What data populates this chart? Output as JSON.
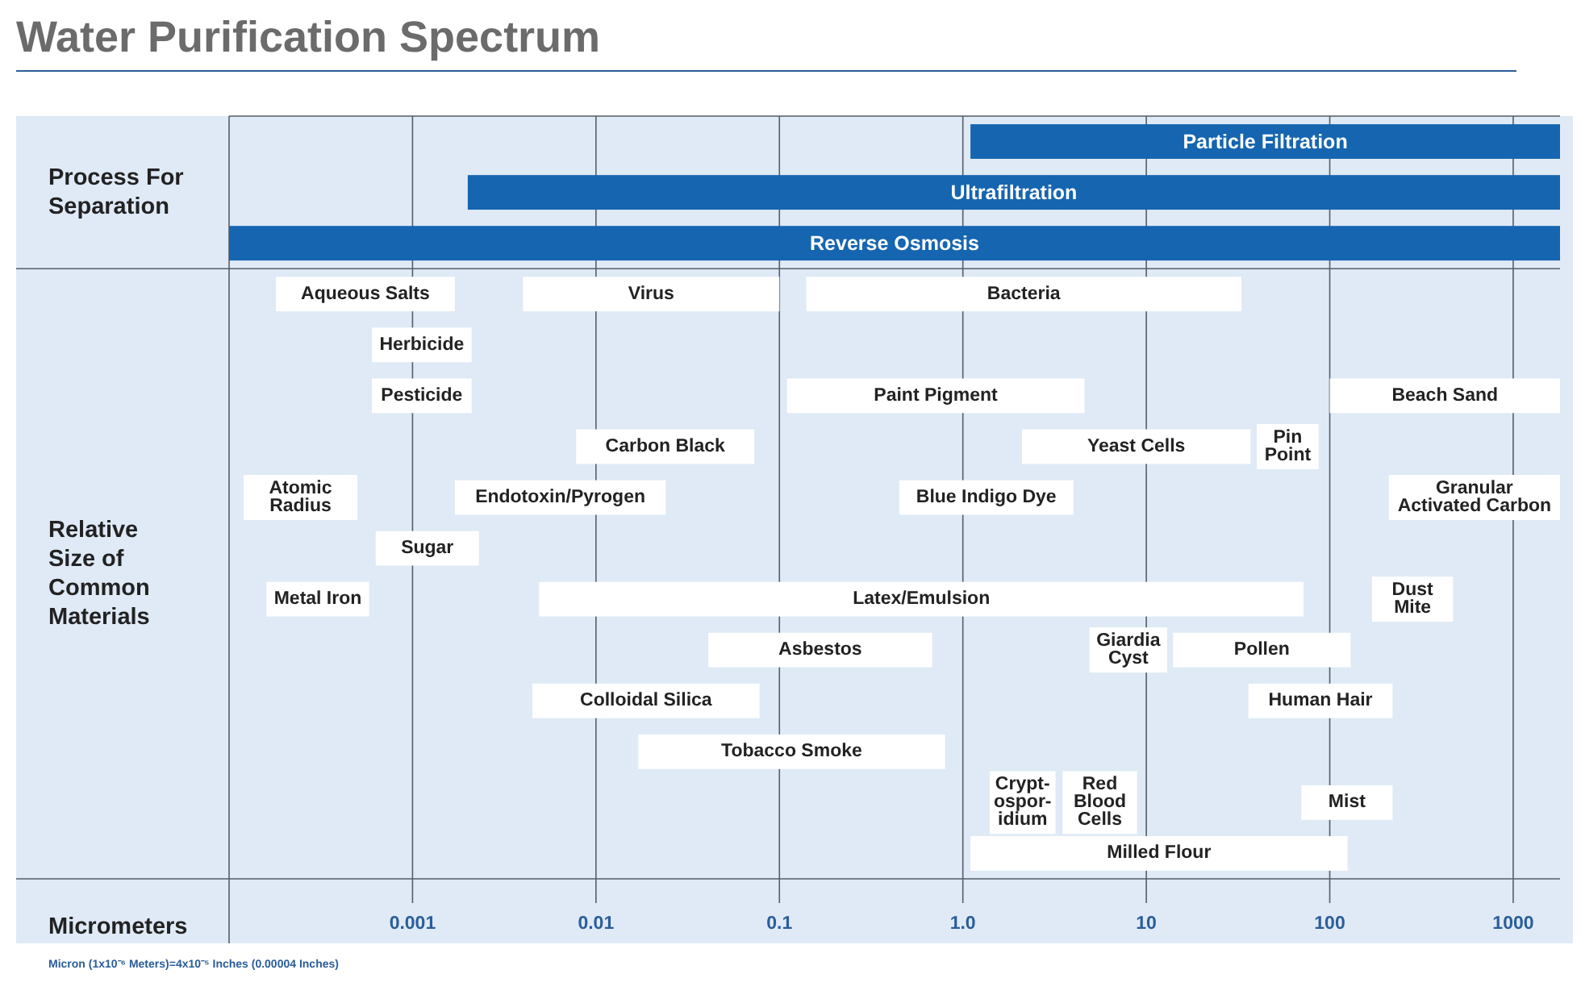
{
  "chart_data": {
    "type": "bar",
    "title": "Water Purification Spectrum",
    "xlabel": "Micrometers",
    "orientation": "horizontal",
    "log": "x",
    "grid": "x",
    "legend": false,
    "tick_labels": "x",
    "annotations": [
      "Process For Separation",
      "Relative Size of Common Materials",
      "Micron (1x10⁻⁶ Meters)=4x10⁻⁵ Inches (0.00004 Inches)"
    ],
    "xlim": [
      0.0001,
      1800
    ],
    "xticks": [
      0.001,
      0.01,
      0.1,
      {
        "value": 1,
        "label": "1.0"
      },
      10,
      100,
      1000
    ],
    "categories": [
      null,
      null,
      null,
      null,
      null,
      null,
      null,
      null,
      null,
      null,
      null,
      null,
      null,
      null,
      null
    ],
    "series": [
      {
        "name": "Particle Filtration",
        "color": "#1565b0",
        "base": [
          1.1,
          null,
          null,
          null,
          null,
          null,
          null,
          null,
          null,
          null,
          null,
          null,
          null,
          null,
          null
        ],
        "values": [
          1798.9,
          null,
          null,
          null,
          null,
          null,
          null,
          null,
          null,
          null,
          null,
          null,
          null,
          null,
          null
        ]
      },
      {
        "name": "Ultrafiltration",
        "color": "#1565b0",
        "base": [
          null,
          0.002,
          null,
          null,
          null,
          null,
          null,
          null,
          null,
          null,
          null,
          null,
          null,
          null,
          null
        ],
        "values": [
          null,
          1799.998,
          null,
          null,
          null,
          null,
          null,
          null,
          null,
          null,
          null,
          null,
          null,
          null,
          null
        ]
      },
      {
        "name": "Reverse Osmosis",
        "color": "#1565b0",
        "base": [
          null,
          null,
          0.0001,
          null,
          null,
          null,
          null,
          null,
          null,
          null,
          null,
          null,
          null,
          null,
          null
        ],
        "values": [
          null,
          null,
          1799.9999,
          null,
          null,
          null,
          null,
          null,
          null,
          null,
          null,
          null,
          null,
          null,
          null
        ]
      },
      {
        "name": "Aqueous Salts",
        "color": "#ffffff",
        "base": [
          null,
          null,
          null,
          0.00018,
          null,
          null,
          null,
          null,
          null,
          null,
          null,
          null,
          null,
          null,
          null
        ],
        "values": [
          null,
          null,
          null,
          0.00152,
          null,
          null,
          null,
          null,
          null,
          null,
          null,
          null,
          null,
          null,
          null
        ]
      },
      {
        "name": "Virus",
        "color": "#ffffff",
        "base": [
          null,
          null,
          null,
          0.004,
          null,
          null,
          null,
          null,
          null,
          null,
          null,
          null,
          null,
          null,
          null
        ],
        "values": [
          null,
          null,
          null,
          0.096,
          null,
          null,
          null,
          null,
          null,
          null,
          null,
          null,
          null,
          null,
          null
        ]
      },
      {
        "name": "Bacteria",
        "color": "#ffffff",
        "base": [
          null,
          null,
          null,
          0.14,
          null,
          null,
          null,
          null,
          null,
          null,
          null,
          null,
          null,
          null,
          null
        ],
        "values": [
          null,
          null,
          null,
          32.86,
          null,
          null,
          null,
          null,
          null,
          null,
          null,
          null,
          null,
          null,
          null
        ]
      },
      {
        "name": "Herbicide",
        "color": "#ffffff",
        "base": [
          null,
          null,
          null,
          null,
          0.0006,
          null,
          null,
          null,
          null,
          null,
          null,
          null,
          null,
          null,
          null
        ],
        "values": [
          null,
          null,
          null,
          null,
          0.0015,
          null,
          null,
          null,
          null,
          null,
          null,
          null,
          null,
          null,
          null
        ]
      },
      {
        "name": "Pesticide",
        "color": "#ffffff",
        "base": [
          null,
          null,
          null,
          null,
          null,
          0.0006,
          null,
          null,
          null,
          null,
          null,
          null,
          null,
          null,
          null
        ],
        "values": [
          null,
          null,
          null,
          null,
          null,
          0.0015,
          null,
          null,
          null,
          null,
          null,
          null,
          null,
          null,
          null
        ]
      },
      {
        "name": "Paint Pigment",
        "color": "#ffffff",
        "base": [
          null,
          null,
          null,
          null,
          null,
          0.11,
          null,
          null,
          null,
          null,
          null,
          null,
          null,
          null,
          null
        ],
        "values": [
          null,
          null,
          null,
          null,
          null,
          4.49,
          null,
          null,
          null,
          null,
          null,
          null,
          null,
          null,
          null
        ]
      },
      {
        "name": "Beach Sand",
        "color": "#ffffff",
        "base": [
          null,
          null,
          null,
          null,
          null,
          100,
          null,
          null,
          null,
          null,
          null,
          null,
          null,
          null,
          null
        ],
        "values": [
          null,
          null,
          null,
          null,
          null,
          1700,
          null,
          null,
          null,
          null,
          null,
          null,
          null,
          null,
          null
        ]
      },
      {
        "name": "Carbon Black",
        "color": "#ffffff",
        "base": [
          null,
          null,
          null,
          null,
          null,
          null,
          0.0078,
          null,
          null,
          null,
          null,
          null,
          null,
          null,
          null
        ],
        "values": [
          null,
          null,
          null,
          null,
          null,
          null,
          0.0652,
          null,
          null,
          null,
          null,
          null,
          null,
          null,
          null
        ]
      },
      {
        "name": "Yeast Cells",
        "color": "#ffffff",
        "base": [
          null,
          null,
          null,
          null,
          null,
          null,
          2.1,
          null,
          null,
          null,
          null,
          null,
          null,
          null,
          null
        ],
        "values": [
          null,
          null,
          null,
          null,
          null,
          null,
          34.9,
          null,
          null,
          null,
          null,
          null,
          null,
          null,
          null
        ]
      },
      {
        "name": "Pin\nPoint",
        "color": "#ffffff",
        "base": [
          null,
          null,
          null,
          null,
          null,
          null,
          40,
          null,
          null,
          null,
          null,
          null,
          null,
          null,
          null
        ],
        "values": [
          null,
          null,
          null,
          null,
          null,
          null,
          47,
          null,
          null,
          null,
          null,
          null,
          null,
          null,
          null
        ]
      },
      {
        "name": "Atomic\nRadius",
        "color": "#ffffff",
        "base": [
          null,
          null,
          null,
          null,
          null,
          null,
          null,
          0.00012,
          null,
          null,
          null,
          null,
          null,
          null,
          null
        ],
        "values": [
          null,
          null,
          null,
          null,
          null,
          null,
          null,
          0.00038,
          null,
          null,
          null,
          null,
          null,
          null,
          null
        ]
      },
      {
        "name": "Endotoxin/Pyrogen",
        "color": "#ffffff",
        "base": [
          null,
          null,
          null,
          null,
          null,
          null,
          null,
          0.0017,
          null,
          null,
          null,
          null,
          null,
          null,
          null
        ],
        "values": [
          null,
          null,
          null,
          null,
          null,
          null,
          null,
          0.0223,
          null,
          null,
          null,
          null,
          null,
          null,
          null
        ]
      },
      {
        "name": "Blue Indigo Dye",
        "color": "#ffffff",
        "base": [
          null,
          null,
          null,
          null,
          null,
          null,
          null,
          0.45,
          null,
          null,
          null,
          null,
          null,
          null,
          null
        ],
        "values": [
          null,
          null,
          null,
          null,
          null,
          null,
          null,
          3.55,
          null,
          null,
          null,
          null,
          null,
          null,
          null
        ]
      },
      {
        "name": "Granular\nActivated Carbon",
        "color": "#ffffff",
        "base": [
          null,
          null,
          null,
          null,
          null,
          null,
          null,
          210,
          null,
          null,
          null,
          null,
          null,
          null,
          null
        ],
        "values": [
          null,
          null,
          null,
          null,
          null,
          null,
          null,
          1590,
          null,
          null,
          null,
          null,
          null,
          null,
          null
        ]
      },
      {
        "name": "Sugar",
        "color": "#ffffff",
        "base": [
          null,
          null,
          null,
          null,
          null,
          null,
          null,
          null,
          0.00063,
          null,
          null,
          null,
          null,
          null,
          null
        ],
        "values": [
          null,
          null,
          null,
          null,
          null,
          null,
          null,
          null,
          0.00167,
          null,
          null,
          null,
          null,
          null,
          null
        ]
      },
      {
        "name": "Metal Iron",
        "color": "#ffffff",
        "base": [
          null,
          null,
          null,
          null,
          null,
          null,
          null,
          null,
          null,
          0.00016,
          null,
          null,
          null,
          null,
          null
        ],
        "values": [
          null,
          null,
          null,
          null,
          null,
          null,
          null,
          null,
          null,
          0.00042,
          null,
          null,
          null,
          null,
          null
        ]
      },
      {
        "name": "Latex/Emulsion",
        "color": "#ffffff",
        "base": [
          null,
          null,
          null,
          null,
          null,
          null,
          null,
          null,
          null,
          0.0049,
          null,
          null,
          null,
          null,
          null
        ],
        "values": [
          null,
          null,
          null,
          null,
          null,
          null,
          null,
          null,
          null,
          71.9951,
          null,
          null,
          null,
          null,
          null
        ]
      },
      {
        "name": "Dust\nMite",
        "color": "#ffffff",
        "base": [
          null,
          null,
          null,
          null,
          null,
          null,
          null,
          null,
          null,
          170,
          null,
          null,
          null,
          null,
          null
        ],
        "values": [
          null,
          null,
          null,
          null,
          null,
          null,
          null,
          null,
          null,
          300,
          null,
          null,
          null,
          null,
          null
        ]
      },
      {
        "name": "Asbestos",
        "color": "#ffffff",
        "base": [
          null,
          null,
          null,
          null,
          null,
          null,
          null,
          null,
          null,
          null,
          0.041,
          null,
          null,
          null,
          null
        ],
        "values": [
          null,
          null,
          null,
          null,
          null,
          null,
          null,
          null,
          null,
          null,
          0.639,
          null,
          null,
          null,
          null
        ]
      },
      {
        "name": "Giardia\nCyst",
        "color": "#ffffff",
        "base": [
          null,
          null,
          null,
          null,
          null,
          null,
          null,
          null,
          null,
          null,
          4.9,
          null,
          null,
          null,
          null
        ],
        "values": [
          null,
          null,
          null,
          null,
          null,
          null,
          null,
          null,
          null,
          null,
          8.1,
          null,
          null,
          null,
          null
        ]
      },
      {
        "name": "Pollen",
        "color": "#ffffff",
        "base": [
          null,
          null,
          null,
          null,
          null,
          null,
          null,
          null,
          null,
          null,
          14,
          null,
          null,
          null,
          null
        ],
        "values": [
          null,
          null,
          null,
          null,
          null,
          null,
          null,
          null,
          null,
          null,
          116,
          null,
          null,
          null,
          null
        ]
      },
      {
        "name": "Colloidal Silica",
        "color": "#ffffff",
        "base": [
          null,
          null,
          null,
          null,
          null,
          null,
          null,
          null,
          null,
          null,
          null,
          0.0045,
          null,
          null,
          null
        ],
        "values": [
          null,
          null,
          null,
          null,
          null,
          null,
          null,
          null,
          null,
          null,
          null,
          0.0735,
          null,
          null,
          null
        ]
      },
      {
        "name": "Human Hair",
        "color": "#ffffff",
        "base": [
          null,
          null,
          null,
          null,
          null,
          null,
          null,
          null,
          null,
          null,
          null,
          36,
          null,
          null,
          null
        ],
        "values": [
          null,
          null,
          null,
          null,
          null,
          null,
          null,
          null,
          null,
          null,
          null,
          184,
          null,
          null,
          null
        ]
      },
      {
        "name": "Tobacco Smoke",
        "color": "#ffffff",
        "base": [
          null,
          null,
          null,
          null,
          null,
          null,
          null,
          null,
          null,
          null,
          null,
          null,
          0.017,
          null,
          null
        ],
        "values": [
          null,
          null,
          null,
          null,
          null,
          null,
          null,
          null,
          null,
          null,
          null,
          null,
          0.783,
          null,
          null
        ]
      },
      {
        "name": "Crypt-\nospor-\nidium",
        "color": "#ffffff",
        "base": [
          null,
          null,
          null,
          null,
          null,
          null,
          null,
          null,
          null,
          null,
          null,
          null,
          null,
          1.4,
          null
        ],
        "values": [
          null,
          null,
          null,
          null,
          null,
          null,
          null,
          null,
          null,
          null,
          null,
          null,
          null,
          1.8,
          null
        ]
      },
      {
        "name": "Red\nBlood\nCells",
        "color": "#ffffff",
        "base": [
          null,
          null,
          null,
          null,
          null,
          null,
          null,
          null,
          null,
          null,
          null,
          null,
          null,
          3.5,
          null
        ],
        "values": [
          null,
          null,
          null,
          null,
          null,
          null,
          null,
          null,
          null,
          null,
          null,
          null,
          null,
          5.4,
          null
        ]
      },
      {
        "name": "Mist",
        "color": "#ffffff",
        "base": [
          null,
          null,
          null,
          null,
          null,
          null,
          null,
          null,
          null,
          null,
          null,
          null,
          null,
          70,
          null
        ],
        "values": [
          null,
          null,
          null,
          null,
          null,
          null,
          null,
          null,
          null,
          null,
          null,
          null,
          null,
          150,
          null
        ]
      },
      {
        "name": "Milled Flour",
        "color": "#ffffff",
        "base": [
          null,
          null,
          null,
          null,
          null,
          null,
          null,
          null,
          null,
          null,
          null,
          null,
          null,
          null,
          1.1
        ],
        "values": [
          null,
          null,
          null,
          null,
          null,
          null,
          null,
          null,
          null,
          null,
          null,
          null,
          null,
          null,
          123.9
        ]
      }
    ]
  }
}
